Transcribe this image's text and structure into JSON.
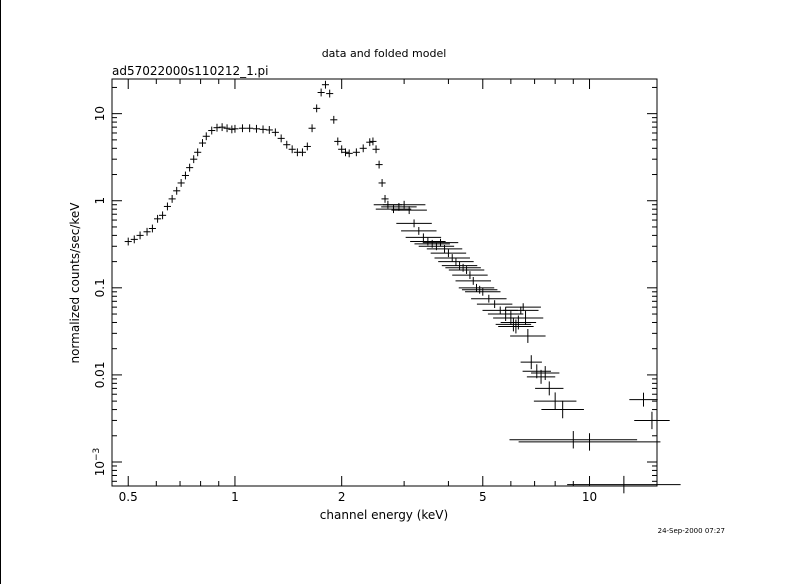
{
  "chart_data": {
    "type": "scatter",
    "title": "data and folded model",
    "subtitle": "ad57022000s110212_1.pi",
    "xlabel": "channel energy (keV)",
    "ylabel": "normalized counts/sec/keV",
    "timestamp": "24-Sep-2000 07:27",
    "xscale": "log",
    "yscale": "log",
    "xlim": [
      0.45,
      15.5
    ],
    "ylim": [
      0.00053,
      25
    ],
    "grid": false,
    "legend": "none",
    "x_tick_labels": [
      {
        "value": 0.5,
        "label": "0.5"
      },
      {
        "value": 1,
        "label": "1"
      },
      {
        "value": 2,
        "label": "2"
      },
      {
        "value": 5,
        "label": "5"
      },
      {
        "value": 10,
        "label": "10"
      }
    ],
    "y_tick_labels": [
      {
        "value": 10,
        "label": "10"
      },
      {
        "value": 1,
        "label": "1"
      },
      {
        "value": 0.1,
        "label": "0.1"
      },
      {
        "value": 0.01,
        "label": "0.01"
      },
      {
        "value": 0.001,
        "label": "10",
        "exponent": "−3"
      }
    ],
    "series": [
      {
        "points": [
          [
            0.5,
            0.34,
            0.01
          ],
          [
            0.52,
            0.36,
            0.01
          ],
          [
            0.54,
            0.4,
            0.01
          ],
          [
            0.565,
            0.44,
            0.01
          ],
          [
            0.585,
            0.48,
            0.01
          ],
          [
            0.605,
            0.62,
            0.01
          ],
          [
            0.625,
            0.68,
            0.01
          ],
          [
            0.645,
            0.86,
            0.01
          ],
          [
            0.665,
            1.05,
            0.01
          ],
          [
            0.685,
            1.3,
            0.01
          ],
          [
            0.705,
            1.6,
            0.01
          ],
          [
            0.725,
            1.95,
            0.01
          ],
          [
            0.745,
            2.4,
            0.01
          ],
          [
            0.765,
            3.0,
            0.01
          ],
          [
            0.785,
            3.6,
            0.01
          ],
          [
            0.81,
            4.6,
            0.01
          ],
          [
            0.83,
            5.5,
            0.01
          ],
          [
            0.86,
            6.4,
            0.01
          ],
          [
            0.89,
            6.9,
            0.01
          ],
          [
            0.92,
            7.0,
            0.01
          ],
          [
            0.95,
            6.8,
            0.01
          ],
          [
            0.98,
            6.6,
            0.01
          ],
          [
            1.0,
            6.7,
            0.01
          ],
          [
            1.05,
            6.8,
            0.01
          ],
          [
            1.1,
            6.8,
            0.01
          ],
          [
            1.15,
            6.7,
            0.01
          ],
          [
            1.2,
            6.6,
            0.01
          ],
          [
            1.25,
            6.5,
            0.01
          ],
          [
            1.3,
            6.1,
            0.01
          ],
          [
            1.35,
            5.2,
            0.01
          ],
          [
            1.4,
            4.4,
            0.01
          ],
          [
            1.45,
            3.9,
            0.01
          ],
          [
            1.5,
            3.6,
            0.01
          ],
          [
            1.55,
            3.6,
            0.01
          ],
          [
            1.6,
            4.2,
            0.01
          ],
          [
            1.65,
            6.8,
            0.01
          ],
          [
            1.7,
            11.5,
            0.01
          ],
          [
            1.75,
            17.5,
            0.01
          ],
          [
            1.8,
            21.5,
            0.01
          ],
          [
            1.85,
            17.0,
            0.01
          ],
          [
            1.9,
            8.5,
            0.01
          ],
          [
            1.95,
            4.8,
            0.01
          ],
          [
            2.0,
            3.9,
            0.01
          ],
          [
            2.05,
            3.6,
            0.01
          ],
          [
            2.1,
            3.5,
            0.01
          ],
          [
            2.2,
            3.6,
            0.01
          ],
          [
            2.3,
            4.0,
            0.01
          ],
          [
            2.4,
            4.7,
            0.01
          ],
          [
            2.45,
            4.8,
            0.01
          ],
          [
            2.5,
            3.9,
            0.01
          ],
          [
            2.55,
            2.6,
            0.01
          ],
          [
            2.6,
            1.6,
            0.01
          ],
          [
            2.65,
            1.05,
            0.01
          ],
          [
            2.7,
            0.9,
            0.04
          ],
          [
            2.8,
            0.8,
            0.05
          ],
          [
            2.9,
            0.85,
            0.05
          ],
          [
            3.0,
            0.9,
            0.06
          ],
          [
            3.1,
            0.78,
            0.05
          ],
          [
            3.2,
            0.55,
            0.05
          ],
          [
            3.3,
            0.45,
            0.05
          ],
          [
            3.4,
            0.38,
            0.05
          ],
          [
            3.5,
            0.34,
            0.05
          ],
          [
            3.6,
            0.32,
            0.05
          ],
          [
            3.7,
            0.3,
            0.05
          ],
          [
            3.8,
            0.33,
            0.05
          ],
          [
            3.9,
            0.28,
            0.05
          ],
          [
            4.0,
            0.25,
            0.05
          ],
          [
            4.1,
            0.22,
            0.05
          ],
          [
            4.2,
            0.2,
            0.05
          ],
          [
            4.3,
            0.18,
            0.05
          ],
          [
            4.4,
            0.17,
            0.05
          ],
          [
            4.5,
            0.16,
            0.05
          ],
          [
            4.6,
            0.14,
            0.05
          ],
          [
            4.7,
            0.12,
            0.05
          ],
          [
            4.8,
            0.1,
            0.05
          ],
          [
            4.9,
            0.095,
            0.05
          ],
          [
            5.0,
            0.09,
            0.05
          ],
          [
            5.2,
            0.075,
            0.05
          ],
          [
            5.4,
            0.065,
            0.05
          ],
          [
            5.6,
            0.055,
            0.05
          ],
          [
            5.8,
            0.05,
            0.05
          ],
          [
            6.0,
            0.045,
            0.05
          ],
          [
            6.1,
            0.038,
            0.05
          ],
          [
            6.2,
            0.036,
            0.05
          ],
          [
            6.3,
            0.04,
            0.05
          ],
          [
            6.4,
            0.055,
            0.05
          ],
          [
            6.5,
            0.06,
            0.05
          ],
          [
            6.6,
            0.045,
            0.05
          ],
          [
            6.7,
            0.028,
            0.05
          ],
          [
            6.85,
            0.014,
            0.03
          ],
          [
            7.1,
            0.011,
            0.04
          ],
          [
            7.3,
            0.0095,
            0.04
          ],
          [
            7.5,
            0.0105,
            0.04
          ],
          [
            7.7,
            0.007,
            0.04
          ],
          [
            8.0,
            0.005,
            0.06
          ],
          [
            8.4,
            0.004,
            0.06
          ],
          [
            9.0,
            0.0018,
            0.18
          ],
          [
            10.0,
            0.0017,
            0.2
          ],
          [
            12.5,
            0.00055,
            0.16
          ],
          [
            14.2,
            0.0052,
            0.04
          ],
          [
            15.0,
            0.003,
            0.05
          ]
        ]
      }
    ]
  }
}
